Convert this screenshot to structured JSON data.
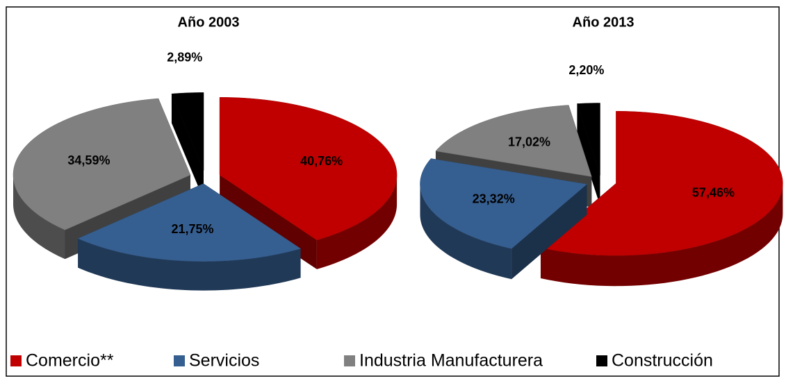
{
  "chart_data": [
    {
      "type": "pie",
      "title": "Año 2003",
      "categories": [
        "Comercio**",
        "Servicios",
        "Industria Manufacturera",
        "Construcción"
      ],
      "values": [
        40.76,
        21.75,
        34.59,
        2.89
      ],
      "value_labels": [
        "40,76%",
        "21,75%",
        "34,59%",
        "2,89%"
      ],
      "colors": [
        "#c00000",
        "#365f91",
        "#808080",
        "#000000"
      ]
    },
    {
      "type": "pie",
      "title": "Año 2013",
      "categories": [
        "Comercio**",
        "Servicios",
        "Industria Manufacturera",
        "Construcción"
      ],
      "values": [
        57.46,
        23.32,
        17.02,
        2.2
      ],
      "value_labels": [
        "57,46%",
        "23,32%",
        "17,02%",
        "2,20%"
      ],
      "colors": [
        "#c00000",
        "#365f91",
        "#808080",
        "#000000"
      ]
    }
  ]
}
